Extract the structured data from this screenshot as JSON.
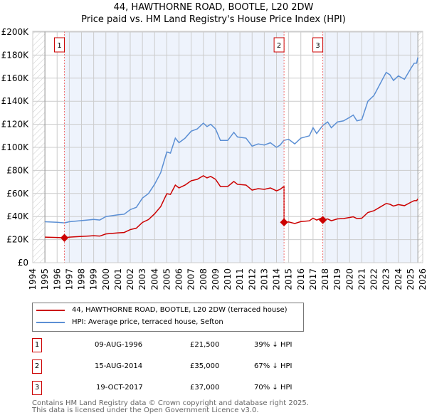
{
  "chart_data": {
    "type": "line",
    "title": "44, HAWTHORNE ROAD, BOOTLE, L20 2DW",
    "subtitle": "Price paid vs. HM Land Registry's House Price Index (HPI)",
    "xlim": [
      1994,
      2026
    ],
    "ylim": [
      0,
      200000
    ],
    "x_ticks": [
      "1994",
      "1995",
      "1996",
      "1997",
      "1998",
      "1999",
      "2000",
      "2001",
      "2002",
      "2003",
      "2004",
      "2005",
      "2006",
      "2007",
      "2008",
      "2009",
      "2010",
      "2011",
      "2012",
      "2013",
      "2014",
      "2015",
      "2016",
      "2017",
      "2018",
      "2019",
      "2020",
      "2021",
      "2022",
      "2023",
      "2024",
      "2025",
      "2026"
    ],
    "y_ticks": [
      {
        "v": 0,
        "label": "£0"
      },
      {
        "v": 20000,
        "label": "£20K"
      },
      {
        "v": 40000,
        "label": "£40K"
      },
      {
        "v": 60000,
        "label": "£60K"
      },
      {
        "v": 80000,
        "label": "£80K"
      },
      {
        "v": 100000,
        "label": "£100K"
      },
      {
        "v": 120000,
        "label": "£120K"
      },
      {
        "v": 140000,
        "label": "£140K"
      },
      {
        "v": 160000,
        "label": "£160K"
      },
      {
        "v": 180000,
        "label": "£180K"
      },
      {
        "v": 200000,
        "label": "£200K"
      }
    ],
    "grid": true,
    "series": [
      {
        "name": "44, HAWTHORNE ROAD, BOOTLE, L20 2DW (terraced house)",
        "color": "#cc0000",
        "derived_from_hpi_and_sales": true
      },
      {
        "name": "HPI: Average price, terraced house, Sefton",
        "color": "#5b8fd4",
        "x": [
          1995,
          1996,
          1996.6,
          1997,
          1998,
          1999,
          1999.5,
          2000,
          2001,
          2001.5,
          2002,
          2002.5,
          2003,
          2003.5,
          2004,
          2004.5,
          2005,
          2005.3,
          2005.7,
          2006,
          2006.5,
          2007,
          2007.5,
          2008,
          2008.3,
          2008.6,
          2009,
          2009.4,
          2010,
          2010.5,
          2010.8,
          2011.5,
          2012,
          2012.5,
          2013,
          2013.5,
          2014,
          2014.3,
          2014.6,
          2015,
          2015.5,
          2016,
          2016.7,
          2017,
          2017.3,
          2017.8,
          2018.2,
          2018.5,
          2019,
          2019.5,
          2020,
          2020.3,
          2020.6,
          2021,
          2021.5,
          2022,
          2022.5,
          2023,
          2023.3,
          2023.6,
          2024,
          2024.5,
          2025,
          2025.3,
          2025.5,
          2025.6
        ],
        "values": [
          35500,
          35000,
          34500,
          35500,
          36500,
          37500,
          37000,
          40000,
          41500,
          42000,
          46000,
          48000,
          56000,
          60000,
          68000,
          78000,
          96000,
          95000,
          108000,
          104000,
          108000,
          114000,
          116000,
          121000,
          118000,
          120000,
          116000,
          106000,
          106000,
          113000,
          109000,
          108000,
          101000,
          103000,
          102000,
          104000,
          100000,
          102000,
          106000,
          107000,
          103000,
          108000,
          110000,
          117000,
          112000,
          119000,
          122000,
          117000,
          122000,
          123000,
          126000,
          128000,
          123000,
          124000,
          140000,
          145000,
          155000,
          165000,
          163000,
          158000,
          162000,
          159000,
          168000,
          173000,
          173000,
          178000
        ]
      }
    ],
    "sales": [
      {
        "id": "1",
        "x": 1996.6,
        "date": "09-AUG-1996",
        "price": 21500,
        "price_label": "£21,500",
        "hpi_label": "39% ↓ HPI"
      },
      {
        "id": "2",
        "x": 2014.62,
        "date": "15-AUG-2014",
        "price": 35000,
        "price_label": "£35,000",
        "hpi_label": "67% ↓ HPI"
      },
      {
        "id": "3",
        "x": 2017.8,
        "date": "19-OCT-2017",
        "price": 37000,
        "price_label": "£37,000",
        "hpi_label": "70% ↓ HPI"
      }
    ],
    "data_range": [
      1995,
      2025.6
    ]
  },
  "footer": [
    "Contains HM Land Registry data © Crown copyright and database right 2025.",
    "This data is licensed under the Open Government Licence v3.0."
  ]
}
